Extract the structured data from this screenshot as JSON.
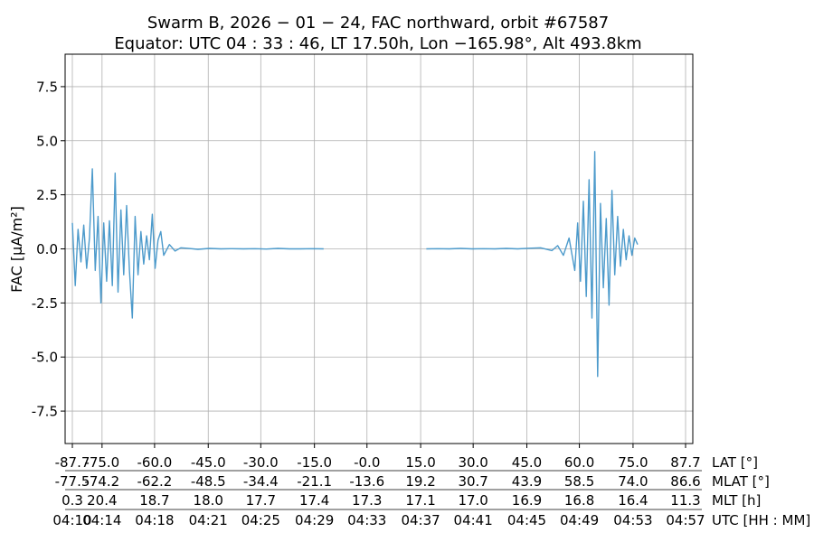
{
  "chart_data": {
    "type": "line",
    "title": "Swarm B,  2026 − 01 − 24,  FAC northward,  orbit #67587",
    "subtitle": "Equator:  UTC 04 : 33 : 46,  LT 17.50h,  Lon  −165.98°,  Alt 493.8km",
    "ylabel": "FAC [µA/m²]",
    "ylim": [
      -9,
      9
    ],
    "xlim": [
      0,
      47
    ],
    "grid": true,
    "line_color": "#4c9acb",
    "y_ticks": [
      {
        "value": 7.5,
        "label": "7.5"
      },
      {
        "value": 5.0,
        "label": "5.0"
      },
      {
        "value": 2.5,
        "label": "2.5"
      },
      {
        "value": 0.0,
        "label": "0.0"
      },
      {
        "value": -2.5,
        "label": "-2.5"
      },
      {
        "value": -5.0,
        "label": "-5.0"
      },
      {
        "value": -7.5,
        "label": "-7.5"
      }
    ],
    "x_tick_rows": [
      {
        "name": "LAT [°]",
        "labels": [
          "-87.7",
          "-75.0",
          "-60.0",
          "-45.0",
          "-30.0",
          "-15.0",
          "-0.0",
          "15.0",
          "30.0",
          "45.0",
          "60.0",
          "75.0",
          "87.7"
        ]
      },
      {
        "name": "MLAT [°]",
        "labels": [
          "-77.5",
          "-74.2",
          "-62.2",
          "-48.5",
          "-34.4",
          "-21.1",
          "-13.6",
          "19.2",
          "30.7",
          "43.9",
          "58.5",
          "74.0",
          "86.6"
        ]
      },
      {
        "name": "MLT [h]",
        "labels": [
          "0.3",
          "20.4",
          "18.7",
          "18.0",
          "17.7",
          "17.4",
          "17.3",
          "17.1",
          "17.0",
          "16.9",
          "16.8",
          "16.4",
          "11.3"
        ]
      },
      {
        "name": "UTC [HH : MM]",
        "labels": [
          "04:10",
          "04:14",
          "04:18",
          "04:21",
          "04:25",
          "04:29",
          "04:33",
          "04:37",
          "04:41",
          "04:45",
          "04:49",
          "04:53",
          "04:57"
        ]
      }
    ],
    "x_tick_positions_min": [
      0,
      2.6,
      7.2,
      11.9,
      16.5,
      21.2,
      25.8,
      30.5,
      35.1,
      39.8,
      44.4,
      49.1,
      53.7
    ],
    "segments": [
      {
        "name": "south-pass",
        "x": [
          0,
          0.25,
          0.5,
          0.75,
          1.0,
          1.25,
          1.5,
          1.75,
          2.0,
          2.25,
          2.5,
          2.75,
          3.0,
          3.25,
          3.5,
          3.75,
          4.0,
          4.25,
          4.5,
          4.75,
          5.0,
          5.25,
          5.5,
          5.75,
          6.0,
          6.25,
          6.5,
          6.75,
          7.0,
          7.25,
          7.5,
          7.75,
          8.0,
          8.5,
          9.0,
          9.5,
          10.0,
          11.0,
          12.0,
          13.0,
          14.0,
          15.0,
          16.0,
          17.0,
          18.0,
          19.0,
          20.0,
          21.0,
          22.0
        ],
        "values": [
          1.2,
          -1.7,
          0.9,
          -0.6,
          1.1,
          -0.9,
          0.5,
          3.7,
          -1.0,
          1.5,
          -2.5,
          1.2,
          -1.5,
          1.3,
          -1.7,
          3.5,
          -2.0,
          1.8,
          -1.2,
          2.0,
          -1.0,
          -3.2,
          1.5,
          -1.2,
          0.8,
          -0.7,
          0.6,
          -0.5,
          1.6,
          -0.9,
          0.4,
          0.8,
          -0.3,
          0.2,
          -0.1,
          0.05,
          0.03,
          -0.02,
          0.02,
          0.0,
          0.01,
          0.0,
          0.01,
          -0.01,
          0.02,
          0.0,
          0.0,
          0.01,
          0.0
        ]
      },
      {
        "name": "north-pass",
        "x": [
          31.0,
          32.0,
          33.0,
          34.0,
          35.0,
          36.0,
          37.0,
          38.0,
          39.0,
          40.0,
          41.0,
          42.0,
          42.5,
          43.0,
          43.5,
          44.0,
          44.25,
          44.5,
          44.75,
          45.0,
          45.25,
          45.5,
          45.75,
          46.0,
          46.25,
          46.5,
          46.75,
          47.0,
          47.25,
          47.5,
          47.75,
          48.0,
          48.25,
          48.5,
          48.75,
          49.0,
          49.25,
          49.5
        ],
        "values": [
          0.0,
          0.01,
          0.0,
          0.02,
          0.0,
          0.01,
          0.0,
          0.02,
          0.0,
          0.03,
          0.05,
          -0.08,
          0.15,
          -0.3,
          0.5,
          -1.0,
          1.2,
          -1.5,
          2.2,
          -2.2,
          3.2,
          -3.2,
          4.5,
          -5.9,
          2.1,
          -1.8,
          1.4,
          -2.6,
          2.7,
          -1.2,
          1.5,
          -0.8,
          0.9,
          -0.5,
          0.6,
          -0.3,
          0.5,
          0.2
        ]
      }
    ]
  }
}
